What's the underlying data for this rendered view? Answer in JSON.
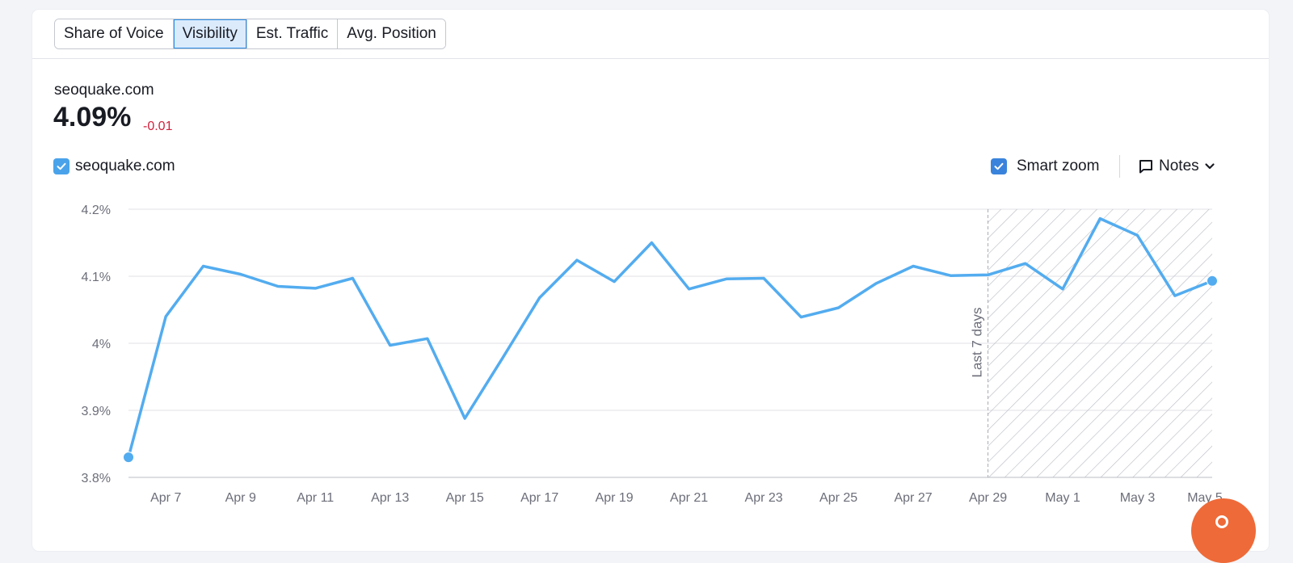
{
  "tabs": [
    {
      "label": "Share of Voice",
      "active": false
    },
    {
      "label": "Visibility",
      "active": true
    },
    {
      "label": "Est. Traffic",
      "active": false
    },
    {
      "label": "Avg. Position",
      "active": false
    }
  ],
  "summary": {
    "domain": "seoquake.com",
    "value": "4.09%",
    "delta": "-0.01"
  },
  "legend": {
    "label": "seoquake.com",
    "checked": true
  },
  "controls": {
    "smart_zoom_label": "Smart zoom",
    "smart_zoom_checked": true,
    "notes_label": "Notes"
  },
  "colors": {
    "accent": "#4aa3ea",
    "line": "#53acef",
    "negative": "#d1213d",
    "fab": "#ee6a38"
  },
  "icons": {
    "checkbox": "checkmark-icon",
    "notes": "speech-bubble-icon",
    "notes_chevron": "chevron-down-icon"
  },
  "chart_data": {
    "type": "line",
    "x": [
      "Apr 6",
      "Apr 7",
      "Apr 8",
      "Apr 9",
      "Apr 10",
      "Apr 11",
      "Apr 12",
      "Apr 13",
      "Apr 14",
      "Apr 15",
      "Apr 16",
      "Apr 17",
      "Apr 18",
      "Apr 19",
      "Apr 20",
      "Apr 21",
      "Apr 22",
      "Apr 23",
      "Apr 24",
      "Apr 25",
      "Apr 26",
      "Apr 27",
      "Apr 28",
      "Apr 29",
      "Apr 30",
      "May 1",
      "May 2",
      "May 3",
      "May 4",
      "May 5"
    ],
    "series": [
      {
        "name": "seoquake.com",
        "values": [
          3.83,
          4.04,
          4.115,
          4.103,
          4.085,
          4.082,
          4.097,
          3.997,
          4.007,
          3.888,
          3.977,
          4.068,
          4.124,
          4.092,
          4.15,
          4.081,
          4.096,
          4.097,
          4.039,
          4.053,
          4.089,
          4.115,
          4.101,
          4.102,
          4.119,
          4.081,
          4.186,
          4.161,
          4.071,
          4.093
        ]
      }
    ],
    "x_tick_labels": [
      "Apr 7",
      "Apr 9",
      "Apr 11",
      "Apr 13",
      "Apr 15",
      "Apr 17",
      "Apr 19",
      "Apr 21",
      "Apr 23",
      "Apr 25",
      "Apr 27",
      "Apr 29",
      "May 1",
      "May 3",
      "May 5"
    ],
    "y_tick_labels": [
      "3.8%",
      "3.9%",
      "4%",
      "4.1%",
      "4.2%"
    ],
    "y_ticks": [
      3.8,
      3.9,
      4.0,
      4.1,
      4.2
    ],
    "ylim": [
      3.8,
      4.2
    ],
    "grid": true,
    "highlight": {
      "from": "Apr 29",
      "to": "May 5",
      "label": "Last 7 days"
    },
    "endpoint_markers": true
  }
}
